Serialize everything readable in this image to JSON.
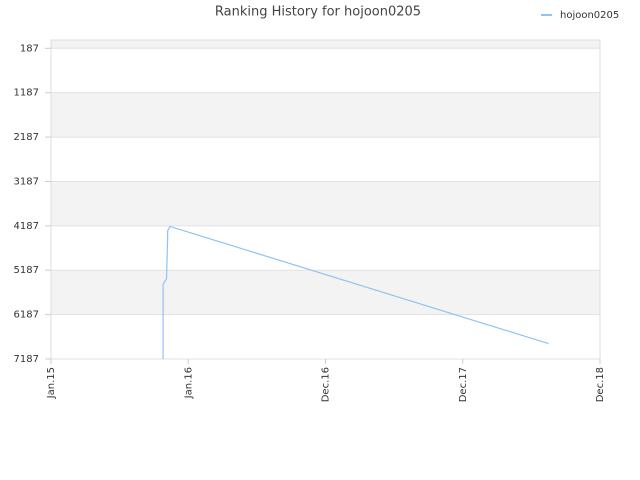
{
  "chart_data": {
    "type": "line",
    "title": "Ranking History for hojoon0205",
    "x_unit_note_free": null,
    "series": [
      {
        "name": "hojoon0205",
        "color": "#8fc3f0",
        "x": [
          9.8,
          9.8,
          10.1,
          10.2,
          10.2,
          10.4,
          43.5
        ],
        "values": [
          7187,
          5500,
          5380,
          4430,
          4300,
          4200,
          6840
        ]
      }
    ],
    "xlim": [
      0,
      48
    ],
    "xticks": [
      {
        "value": 0,
        "label": "Jan.15"
      },
      {
        "value": 12,
        "label": "Jan.16"
      },
      {
        "value": 24,
        "label": "Dec.16"
      },
      {
        "value": 36,
        "label": "Dec.17"
      },
      {
        "value": 48,
        "label": "Dec.18"
      }
    ],
    "ylim": [
      7187,
      0
    ],
    "yticks": [
      187,
      1187,
      2187,
      3187,
      4187,
      5187,
      6187,
      7187
    ],
    "grid": true,
    "legend": "top-right"
  }
}
